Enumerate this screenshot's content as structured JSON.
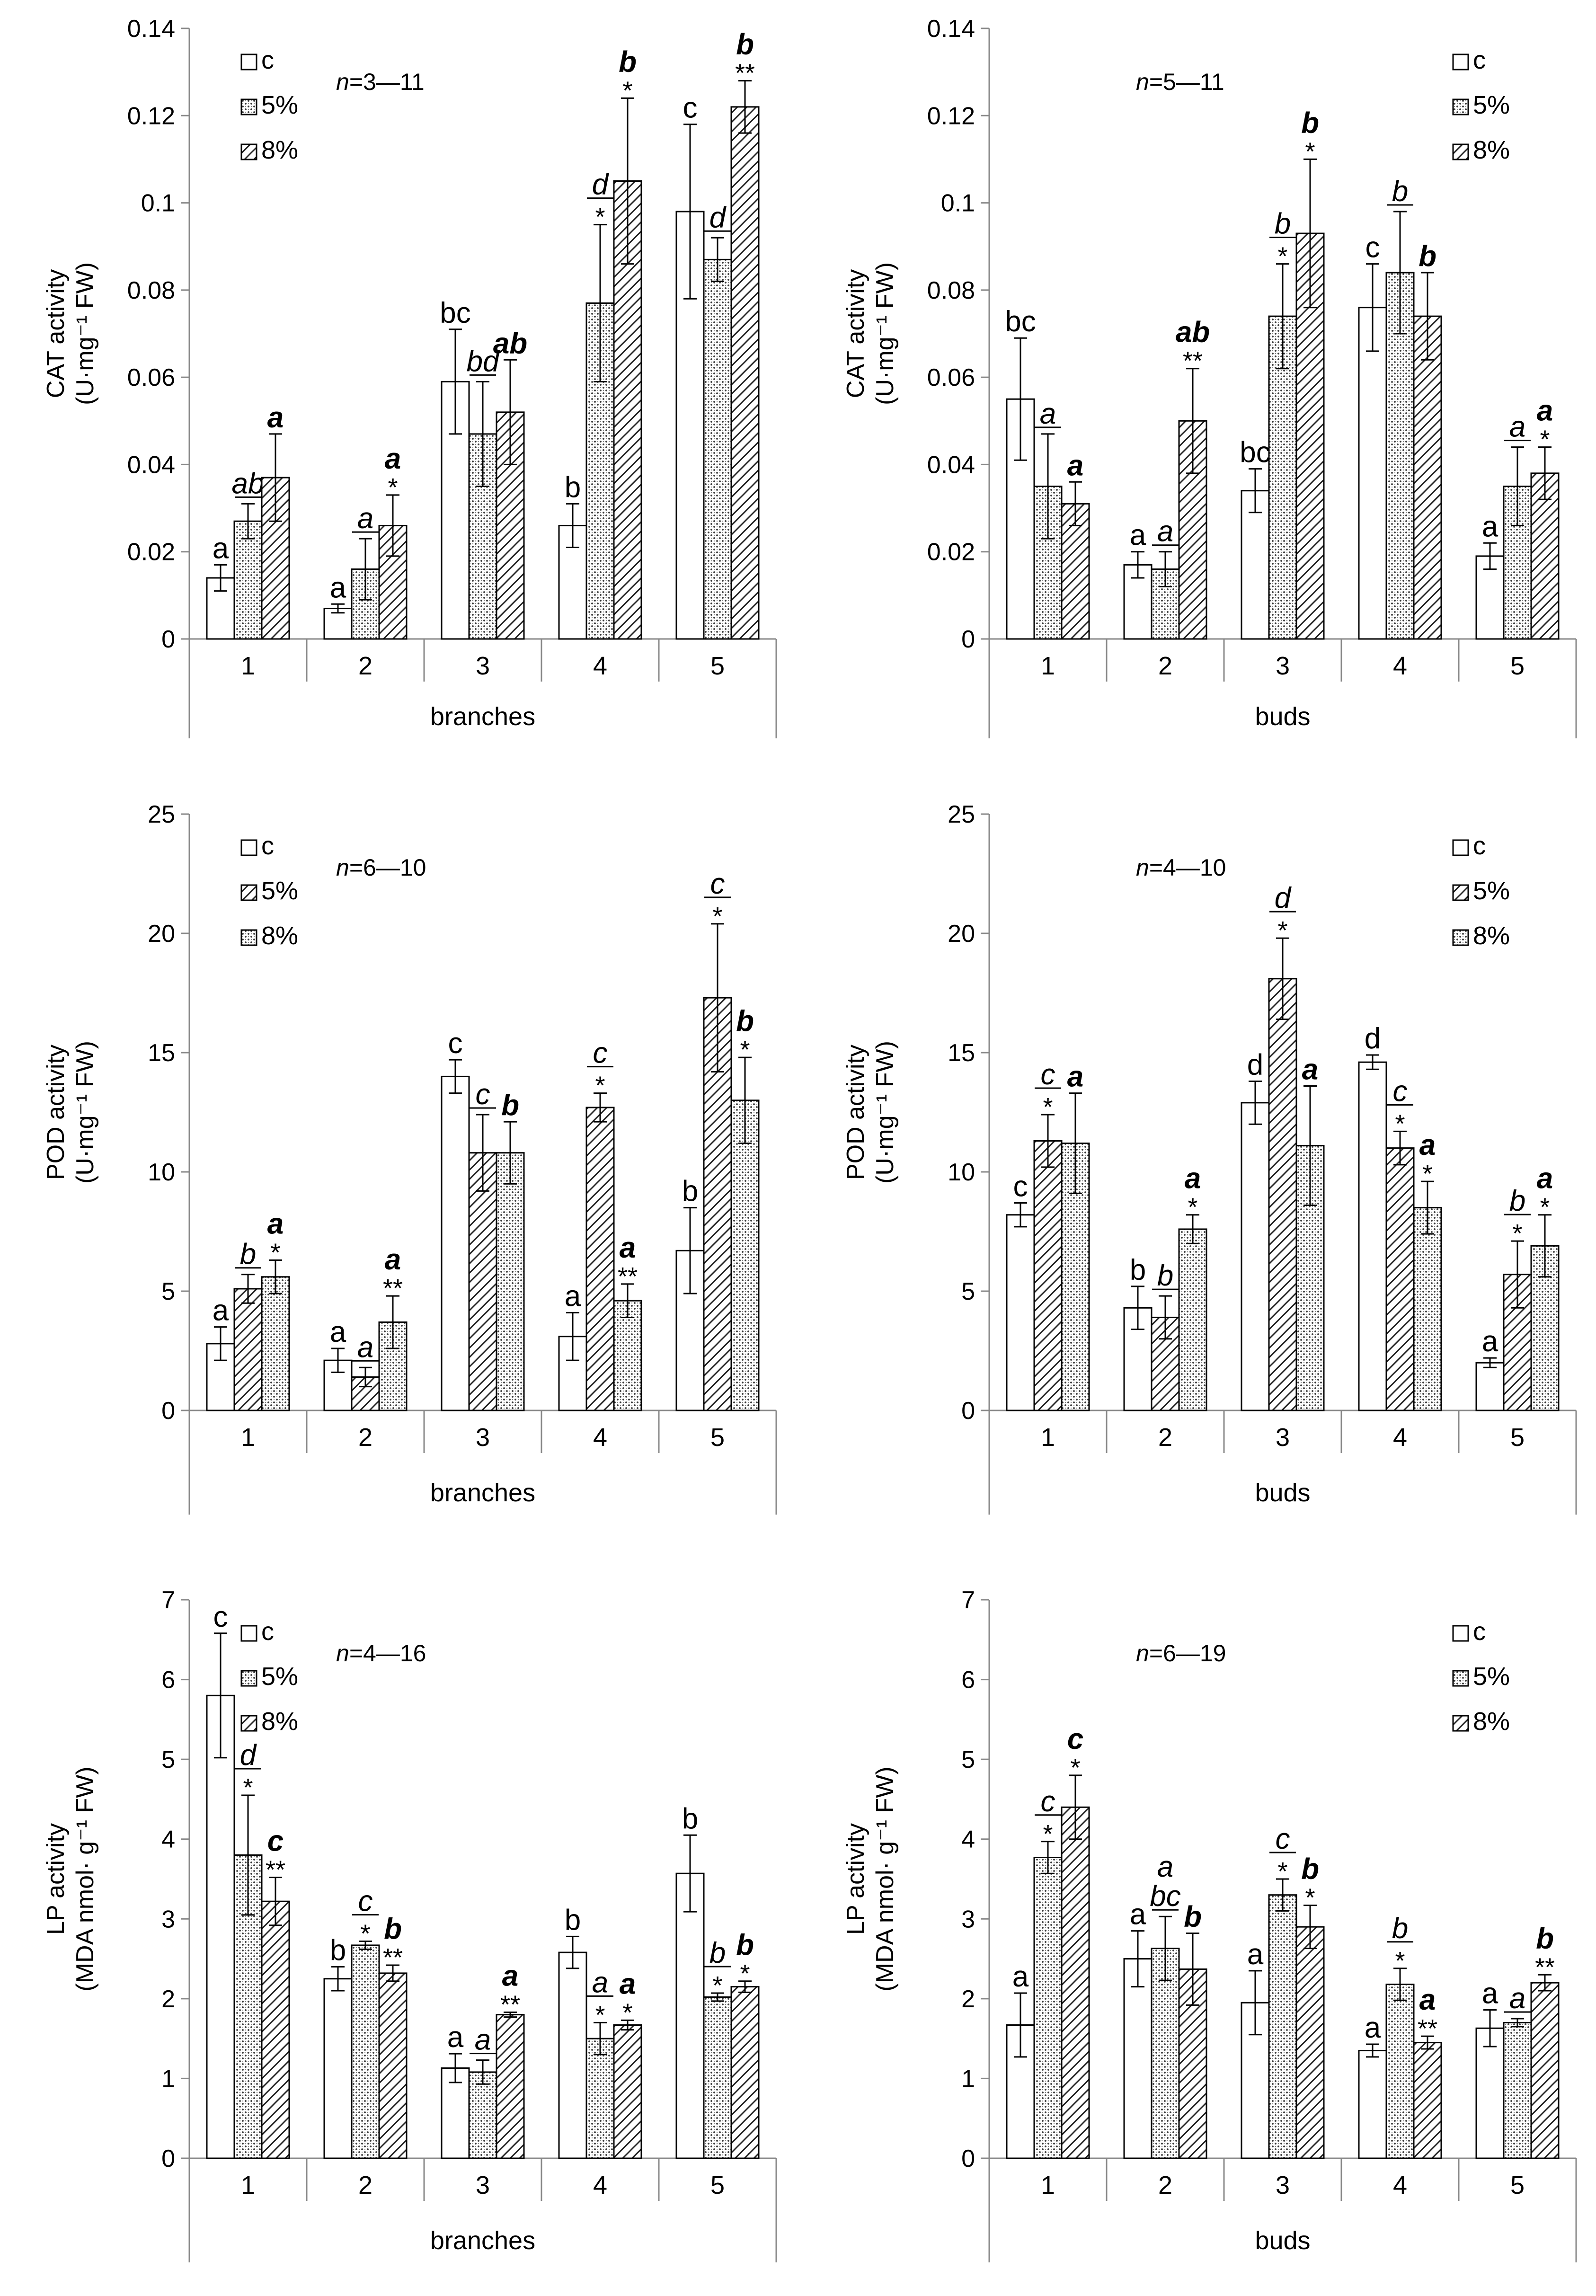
{
  "chart_data": [
    {
      "type": "bar",
      "tissue": "branches",
      "xlabel": "branches",
      "ylabel_line1": "CAT activity",
      "ylabel_line2": "(U·mg⁻¹ FW)",
      "n_text": "n=3—11",
      "ylim": [
        0,
        0.14
      ],
      "yticks": [
        "0",
        "0.02",
        "0.04",
        "0.06",
        "0.08",
        "0.1",
        "0.12",
        "0.14"
      ],
      "categories": [
        "1",
        "2",
        "3",
        "4",
        "5"
      ],
      "series": [
        {
          "name": "c",
          "pattern": "white",
          "values": [
            0.014,
            0.007,
            0.059,
            0.026,
            0.098
          ],
          "errors": [
            0.003,
            0.001,
            0.012,
            0.005,
            0.02
          ],
          "labels": [
            {
              "t": "a",
              "style": "normal"
            },
            {
              "t": "a",
              "style": "normal"
            },
            {
              "t": "bc",
              "style": "normal"
            },
            {
              "t": "b",
              "style": "normal"
            },
            {
              "t": "c",
              "style": "normal"
            }
          ]
        },
        {
          "name": "5%",
          "pattern": "dots",
          "values": [
            0.027,
            0.016,
            0.047,
            0.077,
            0.087
          ],
          "errors": [
            0.004,
            0.007,
            0.012,
            0.018,
            0.005
          ],
          "labels": [
            {
              "t": "ab",
              "style": "italic",
              "bar": true
            },
            {
              "t": "a",
              "style": "italic",
              "bar": true
            },
            {
              "t": "bd",
              "style": "italic",
              "bar": true
            },
            {
              "t": "d",
              "style": "italic",
              "bar": true,
              "star": "*"
            },
            {
              "t": "d",
              "style": "italic",
              "bar": true
            }
          ]
        },
        {
          "name": "8%",
          "pattern": "hatch",
          "values": [
            0.037,
            0.026,
            0.052,
            0.105,
            0.122
          ],
          "errors": [
            0.01,
            0.007,
            0.012,
            0.019,
            0.006
          ],
          "labels": [
            {
              "t": "a",
              "style": "bold-italic"
            },
            {
              "t": "a",
              "style": "bold-italic",
              "star": "*"
            },
            {
              "t": "ab",
              "style": "bold-italic"
            },
            {
              "t": "b",
              "style": "bold-italic",
              "star": "*"
            },
            {
              "t": "b",
              "style": "bold-italic",
              "star": "**"
            }
          ]
        }
      ]
    },
    {
      "type": "bar",
      "tissue": "buds",
      "xlabel": "buds",
      "ylabel_line1": "CAT activity",
      "ylabel_line2": "(U·mg⁻¹ FW)",
      "n_text": "n=5—11",
      "ylim": [
        0,
        0.14
      ],
      "yticks": [
        "0",
        "0.02",
        "0.04",
        "0.06",
        "0.08",
        "0.1",
        "0.12",
        "0.14"
      ],
      "categories": [
        "1",
        "2",
        "3",
        "4",
        "5"
      ],
      "series": [
        {
          "name": "c",
          "pattern": "white",
          "values": [
            0.055,
            0.017,
            0.034,
            0.076,
            0.019
          ],
          "errors": [
            0.014,
            0.003,
            0.005,
            0.01,
            0.003
          ],
          "labels": [
            {
              "t": "bc",
              "style": "normal"
            },
            {
              "t": "a",
              "style": "normal"
            },
            {
              "t": "bc",
              "style": "normal"
            },
            {
              "t": "c",
              "style": "normal"
            },
            {
              "t": "a",
              "style": "normal"
            }
          ]
        },
        {
          "name": "5%",
          "pattern": "dots",
          "values": [
            0.035,
            0.016,
            0.074,
            0.084,
            0.035
          ],
          "errors": [
            0.012,
            0.004,
            0.012,
            0.014,
            0.009
          ],
          "labels": [
            {
              "t": "a",
              "style": "italic",
              "bar": true
            },
            {
              "t": "a",
              "style": "italic",
              "bar": true
            },
            {
              "t": "b",
              "style": "italic",
              "bar": true,
              "star": "*"
            },
            {
              "t": "b",
              "style": "italic",
              "bar": true
            },
            {
              "t": "a",
              "style": "italic",
              "bar": true
            }
          ]
        },
        {
          "name": "8%",
          "pattern": "hatch",
          "values": [
            0.031,
            0.05,
            0.093,
            0.074,
            0.038
          ],
          "errors": [
            0.005,
            0.012,
            0.017,
            0.01,
            0.006
          ],
          "labels": [
            {
              "t": "a",
              "style": "bold-italic"
            },
            {
              "t": "ab",
              "style": "bold-italic",
              "star": "**"
            },
            {
              "t": "b",
              "style": "bold-italic",
              "star": "*"
            },
            {
              "t": "b",
              "style": "bold-italic"
            },
            {
              "t": "a",
              "style": "bold-italic",
              "star": "*"
            }
          ]
        }
      ]
    },
    {
      "type": "bar",
      "tissue": "branches",
      "xlabel": "branches",
      "ylabel_line1": "POD activity",
      "ylabel_line2": "(U·mg⁻¹ FW)",
      "n_text": "n=6—10",
      "ylim": [
        0,
        25
      ],
      "yticks": [
        "0",
        "5",
        "10",
        "15",
        "20",
        "25"
      ],
      "categories": [
        "1",
        "2",
        "3",
        "4",
        "5"
      ],
      "series": [
        {
          "name": "c",
          "pattern": "white",
          "values": [
            2.8,
            2.1,
            14.0,
            3.1,
            6.7
          ],
          "errors": [
            0.7,
            0.5,
            0.7,
            1.0,
            1.8
          ],
          "labels": [
            {
              "t": "a",
              "style": "normal"
            },
            {
              "t": "a",
              "style": "normal"
            },
            {
              "t": "c",
              "style": "normal"
            },
            {
              "t": "a",
              "style": "normal"
            },
            {
              "t": "b",
              "style": "normal"
            }
          ]
        },
        {
          "name": "5%",
          "pattern": "hatch",
          "values": [
            5.1,
            1.4,
            10.8,
            12.7,
            17.3
          ],
          "errors": [
            0.6,
            0.4,
            1.6,
            0.6,
            3.1
          ],
          "labels": [
            {
              "t": "b",
              "style": "italic",
              "bar": true
            },
            {
              "t": "a",
              "style": "italic",
              "bar": true
            },
            {
              "t": "c",
              "style": "italic",
              "bar": true
            },
            {
              "t": "c",
              "style": "italic",
              "bar": true,
              "star": "*"
            },
            {
              "t": "c",
              "style": "italic",
              "bar": true,
              "star": "*"
            }
          ]
        },
        {
          "name": "8%",
          "pattern": "dots",
          "values": [
            5.6,
            3.7,
            10.8,
            4.6,
            13.0
          ],
          "errors": [
            0.7,
            1.1,
            1.3,
            0.7,
            1.8
          ],
          "labels": [
            {
              "t": "a",
              "style": "bold-italic",
              "star": "*"
            },
            {
              "t": "a",
              "style": "bold-italic",
              "star": "**"
            },
            {
              "t": "b",
              "style": "bold-italic"
            },
            {
              "t": "a",
              "style": "bold-italic",
              "star": "**"
            },
            {
              "t": "b",
              "style": "bold-italic",
              "star": "*"
            }
          ]
        }
      ]
    },
    {
      "type": "bar",
      "tissue": "buds",
      "xlabel": "buds",
      "ylabel_line1": "POD activity",
      "ylabel_line2": "(U·mg⁻¹ FW)",
      "n_text": "n=4—10",
      "ylim": [
        0,
        25
      ],
      "yticks": [
        "0",
        "5",
        "10",
        "15",
        "20",
        "25"
      ],
      "categories": [
        "1",
        "2",
        "3",
        "4",
        "5"
      ],
      "series": [
        {
          "name": "c",
          "pattern": "white",
          "values": [
            8.2,
            4.3,
            12.9,
            14.6,
            2.0
          ],
          "errors": [
            0.5,
            0.9,
            0.9,
            0.3,
            0.2
          ],
          "labels": [
            {
              "t": "c",
              "style": "normal"
            },
            {
              "t": "b",
              "style": "normal"
            },
            {
              "t": "d",
              "style": "normal"
            },
            {
              "t": "d",
              "style": "normal"
            },
            {
              "t": "a",
              "style": "normal"
            }
          ]
        },
        {
          "name": "5%",
          "pattern": "hatch",
          "values": [
            11.3,
            3.9,
            18.1,
            11.0,
            5.7
          ],
          "errors": [
            1.1,
            0.9,
            1.7,
            0.7,
            1.4
          ],
          "labels": [
            {
              "t": "c",
              "style": "italic",
              "bar": true,
              "star": "*"
            },
            {
              "t": "b",
              "style": "italic",
              "bar": true
            },
            {
              "t": "d",
              "style": "italic",
              "bar": true,
              "star": "*"
            },
            {
              "t": "c",
              "style": "italic",
              "bar": true,
              "star": "*"
            },
            {
              "t": "b",
              "style": "italic",
              "bar": true,
              "star": "*"
            }
          ]
        },
        {
          "name": "8%",
          "pattern": "dots",
          "values": [
            11.2,
            7.6,
            11.1,
            8.5,
            6.9
          ],
          "errors": [
            2.1,
            0.6,
            2.5,
            1.1,
            1.3
          ],
          "labels": [
            {
              "t": "a",
              "style": "bold-italic"
            },
            {
              "t": "a",
              "style": "bold-italic",
              "star": "*"
            },
            {
              "t": "a",
              "style": "bold-italic"
            },
            {
              "t": "a",
              "style": "bold-italic",
              "star": "*"
            },
            {
              "t": "a",
              "style": "bold-italic",
              "star": "*"
            }
          ]
        }
      ]
    },
    {
      "type": "bar",
      "tissue": "branches",
      "xlabel": "branches",
      "ylabel_line1": "LP activity",
      "ylabel_line2": "(MDA nmol· g⁻¹ FW)",
      "n_text": "n=4—16",
      "ylim": [
        0,
        7
      ],
      "yticks": [
        "0",
        "1",
        "2",
        "3",
        "4",
        "5",
        "6",
        "7"
      ],
      "categories": [
        "1",
        "2",
        "3",
        "4",
        "5"
      ],
      "series": [
        {
          "name": "c",
          "pattern": "white",
          "values": [
            5.8,
            2.25,
            1.13,
            2.58,
            3.57
          ],
          "errors": [
            0.78,
            0.15,
            0.18,
            0.2,
            0.48
          ],
          "labels": [
            {
              "t": "c",
              "style": "normal"
            },
            {
              "t": "b",
              "style": "normal"
            },
            {
              "t": "a",
              "style": "normal"
            },
            {
              "t": "b",
              "style": "normal"
            },
            {
              "t": "b",
              "style": "normal"
            }
          ]
        },
        {
          "name": "5%",
          "pattern": "dots",
          "values": [
            3.8,
            2.67,
            1.08,
            1.5,
            2.02
          ],
          "errors": [
            0.75,
            0.05,
            0.15,
            0.2,
            0.05
          ],
          "labels": [
            {
              "t": "d",
              "style": "italic",
              "bar": true,
              "star": "*"
            },
            {
              "t": "c",
              "style": "italic",
              "bar": true,
              "star": "*"
            },
            {
              "t": "a",
              "style": "italic",
              "bar": true
            },
            {
              "t": "a",
              "style": "italic",
              "bar": true,
              "star": "*"
            },
            {
              "t": "b",
              "style": "italic",
              "bar": true,
              "star": "*"
            }
          ]
        },
        {
          "name": "8%",
          "pattern": "hatch",
          "values": [
            3.22,
            2.32,
            1.8,
            1.67,
            2.15
          ],
          "errors": [
            0.3,
            0.1,
            0.03,
            0.06,
            0.07
          ],
          "labels": [
            {
              "t": "c",
              "style": "bold-italic",
              "star": "**"
            },
            {
              "t": "b",
              "style": "bold-italic",
              "star": "**"
            },
            {
              "t": "a",
              "style": "bold-italic",
              "star": "**"
            },
            {
              "t": "a",
              "style": "bold-italic",
              "star": "*"
            },
            {
              "t": "b",
              "style": "bold-italic",
              "star": "*"
            }
          ]
        }
      ]
    },
    {
      "type": "bar",
      "tissue": "buds",
      "xlabel": "buds",
      "ylabel_line1": "LP activity",
      "ylabel_line2": "(MDA nmol· g⁻¹ FW)",
      "n_text": "n=6—19",
      "ylim": [
        0,
        7
      ],
      "yticks": [
        "0",
        "1",
        "2",
        "3",
        "4",
        "5",
        "6",
        "7"
      ],
      "categories": [
        "1",
        "2",
        "3",
        "4",
        "5"
      ],
      "series": [
        {
          "name": "c",
          "pattern": "white",
          "values": [
            1.67,
            2.5,
            1.95,
            1.35,
            1.63
          ],
          "errors": [
            0.4,
            0.35,
            0.4,
            0.08,
            0.23
          ],
          "labels": [
            {
              "t": "a",
              "style": "normal"
            },
            {
              "t": "a",
              "style": "normal"
            },
            {
              "t": "a",
              "style": "normal"
            },
            {
              "t": "a",
              "style": "normal"
            },
            {
              "t": "a",
              "style": "normal"
            }
          ]
        },
        {
          "name": "5%",
          "pattern": "dots",
          "values": [
            3.77,
            2.63,
            3.3,
            2.18,
            1.7
          ],
          "errors": [
            0.2,
            0.4,
            0.2,
            0.2,
            0.05
          ],
          "labels": [
            {
              "t": "c",
              "style": "italic",
              "bar": true,
              "star": "*"
            },
            {
              "t": "bc",
              "style": "italic",
              "bar": true,
              "extra": "a"
            },
            {
              "t": "c",
              "style": "italic",
              "bar": true,
              "star": "*"
            },
            {
              "t": "b",
              "style": "italic",
              "bar": true,
              "star": "*"
            },
            {
              "t": "a",
              "style": "italic",
              "bar": true
            }
          ]
        },
        {
          "name": "8%",
          "pattern": "hatch",
          "values": [
            4.4,
            2.37,
            2.9,
            1.45,
            2.2
          ],
          "errors": [
            0.4,
            0.45,
            0.27,
            0.08,
            0.1
          ],
          "labels": [
            {
              "t": "c",
              "style": "bold-italic",
              "star": "*"
            },
            {
              "t": "b",
              "style": "bold-italic"
            },
            {
              "t": "b",
              "style": "bold-italic",
              "star": "*"
            },
            {
              "t": "a",
              "style": "bold-italic",
              "star": "**"
            },
            {
              "t": "b",
              "style": "bold-italic",
              "star": "**"
            }
          ]
        }
      ]
    }
  ]
}
